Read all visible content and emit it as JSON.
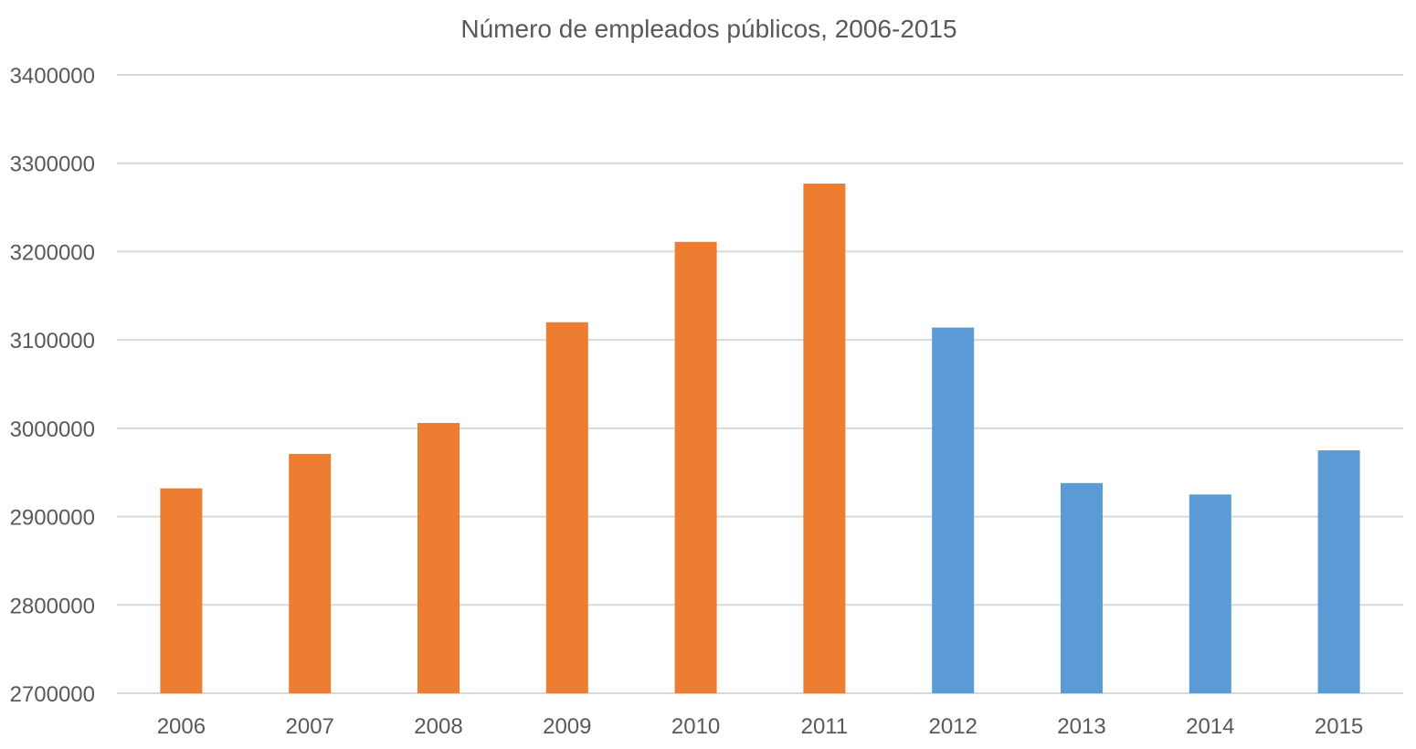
{
  "chart_data": {
    "type": "bar",
    "title": "Número de empleados públicos, 2006-2015",
    "xlabel": "",
    "ylabel": "",
    "categories": [
      "2006",
      "2007",
      "2008",
      "2009",
      "2010",
      "2011",
      "2012",
      "2013",
      "2014",
      "2015"
    ],
    "values": [
      2932000,
      2971000,
      3006000,
      3120000,
      3211000,
      3277000,
      3114000,
      2938000,
      2925000,
      2975000
    ],
    "bar_colors": [
      "#ED7D31",
      "#ED7D31",
      "#ED7D31",
      "#ED7D31",
      "#ED7D31",
      "#ED7D31",
      "#5B9BD5",
      "#5B9BD5",
      "#5B9BD5",
      "#5B9BD5"
    ],
    "ylim": [
      2700000,
      3400000
    ],
    "yticks": [
      "2700000",
      "2800000",
      "2900000",
      "3000000",
      "3100000",
      "3200000",
      "3300000",
      "3400000"
    ],
    "grid": true,
    "legend": "none"
  }
}
